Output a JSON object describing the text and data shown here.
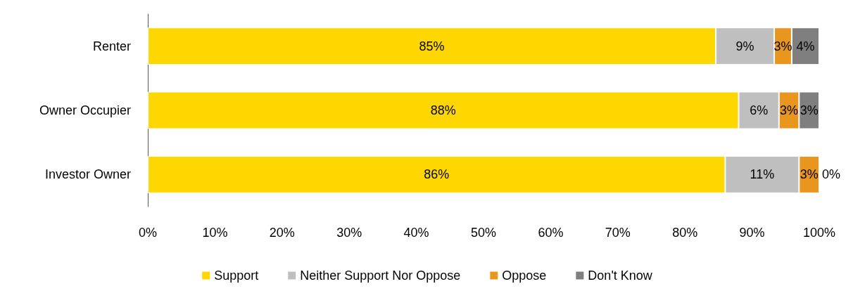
{
  "chart_data": {
    "type": "bar",
    "orientation": "horizontal",
    "stacked": true,
    "categories": [
      "Renter",
      "Owner Occupier",
      "Investor Owner"
    ],
    "series": [
      {
        "name": "Support",
        "color": "#ffd700",
        "values": [
          84.6,
          88,
          86
        ],
        "value_labels": [
          "85%",
          "88%",
          "86%"
        ]
      },
      {
        "name": "Neither Support Nor Oppose",
        "color": "#bfbfbf",
        "values": [
          8.7,
          6,
          11
        ],
        "value_labels": [
          "9%",
          "6%",
          "11%"
        ]
      },
      {
        "name": "Oppose",
        "color": "#e8961e",
        "values": [
          2.6,
          3,
          3
        ],
        "value_labels": [
          "3%",
          "3%",
          "3%"
        ]
      },
      {
        "name": "Don't Know",
        "color": "#7f7f80",
        "values": [
          4.1,
          3,
          0
        ],
        "value_labels": [
          "4%",
          "3%",
          "0%"
        ]
      }
    ],
    "xlim": [
      0,
      100
    ],
    "xticks": [
      {
        "value": 0,
        "label": "0%"
      },
      {
        "value": 10,
        "label": "10%"
      },
      {
        "value": 20,
        "label": "20%"
      },
      {
        "value": 30,
        "label": "30%"
      },
      {
        "value": 40,
        "label": "40%"
      },
      {
        "value": 50,
        "label": "50%"
      },
      {
        "value": 60,
        "label": "60%"
      },
      {
        "value": 70,
        "label": "70%"
      },
      {
        "value": 80,
        "label": "80%"
      },
      {
        "value": 90,
        "label": "90%"
      },
      {
        "value": 100,
        "label": "100%"
      }
    ],
    "grid": false,
    "legend": "bottom"
  }
}
